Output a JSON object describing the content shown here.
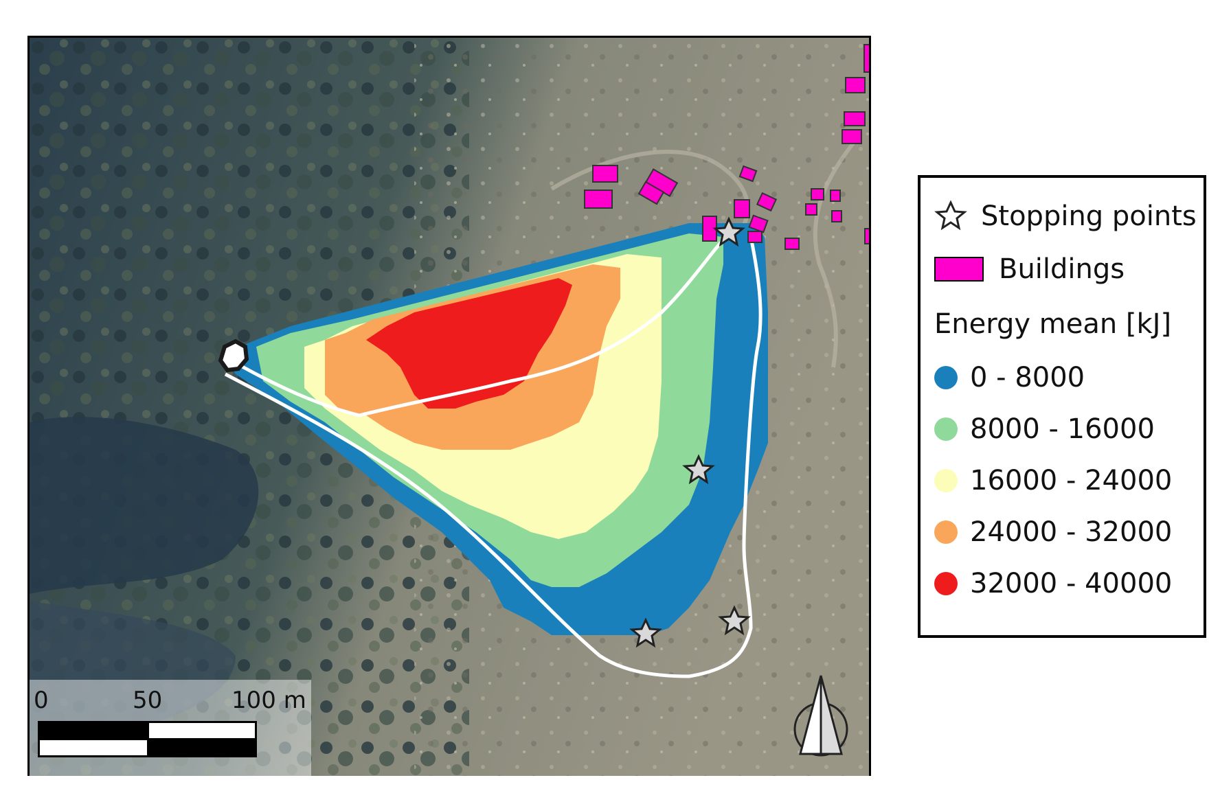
{
  "legend": {
    "stopping_points_label": "Stopping points",
    "buildings_label": "Buildings",
    "energy_title": "Energy mean [kJ]",
    "classes": [
      {
        "label": "0 - 8000",
        "color": "#1a80bb"
      },
      {
        "label": "8000 - 16000",
        "color": "#8fd99b"
      },
      {
        "label": "16000 - 24000",
        "color": "#fbfdb8"
      },
      {
        "label": "24000 - 32000",
        "color": "#f9a55a"
      },
      {
        "label": "32000 - 40000",
        "color": "#ee1c1c"
      }
    ],
    "building_color": "#ff00cc",
    "star_color": "#d9d9d9"
  },
  "scale_bar": {
    "labels": [
      "0",
      "50",
      "100 m"
    ]
  },
  "colors": {
    "forest": "#2f4652",
    "slope": "#8e8c7a",
    "trajectory": "#ffffff"
  },
  "icons": [
    "star-icon",
    "north-arrow-icon",
    "release-point-icon"
  ]
}
